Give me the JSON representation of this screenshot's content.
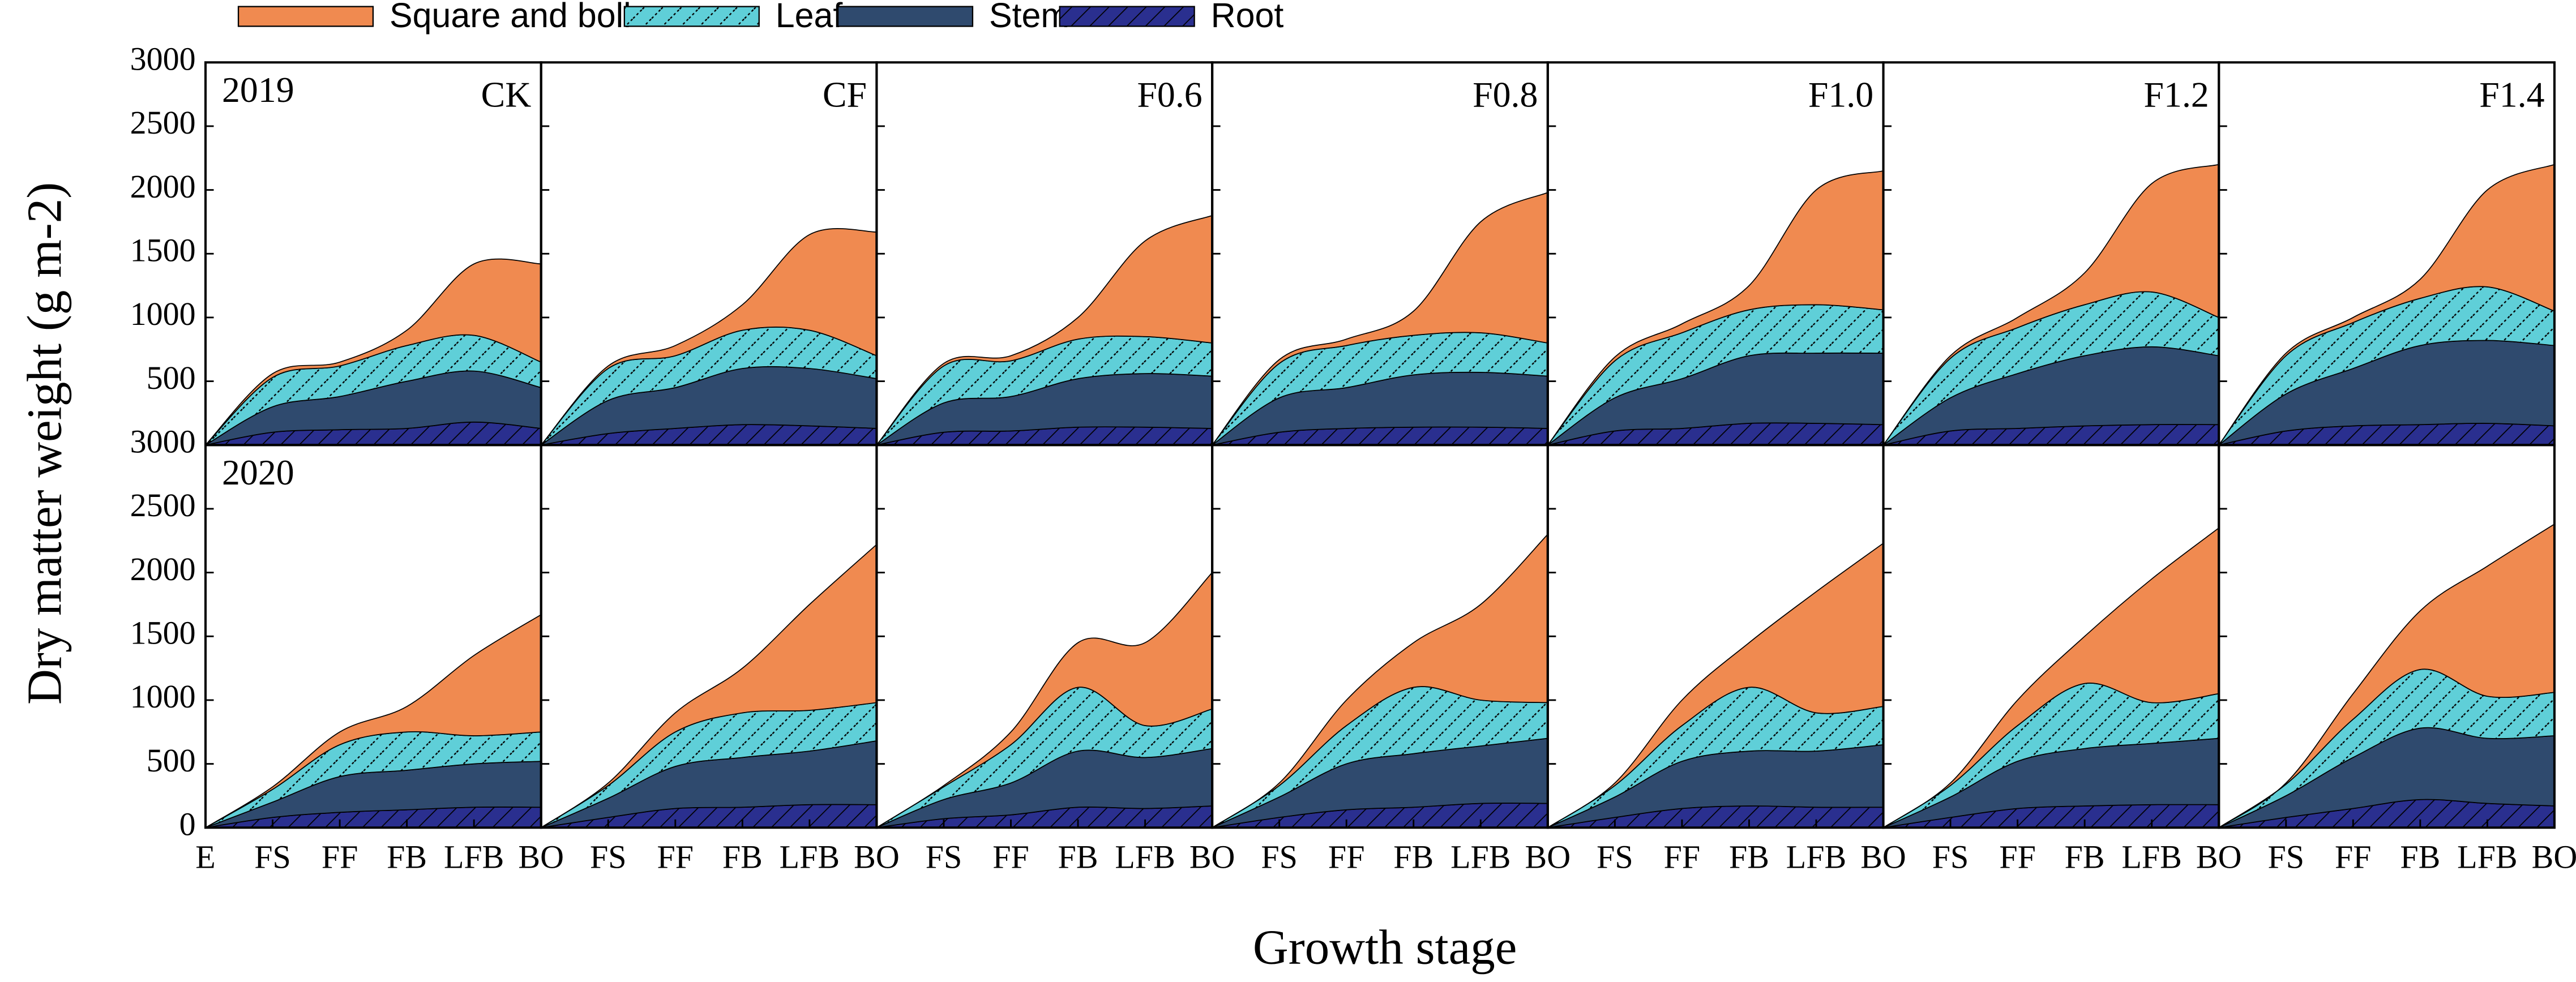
{
  "chart_data": {
    "type": "stacked_area",
    "ylabel": "Dry matter weight (g m-2)",
    "xlabel": "Growth stage",
    "categories": [
      "E",
      "FS",
      "FF",
      "FB",
      "LFB",
      "BO"
    ],
    "ylim": [
      0,
      3000
    ],
    "yticks": [
      0,
      500,
      1000,
      1500,
      2000,
      2500,
      3000
    ],
    "series": [
      {
        "name": "Square and boll",
        "color": "#f08a50"
      },
      {
        "name": "Leaf",
        "color": "#5fcfd8"
      },
      {
        "name": "Stem",
        "color": "#2f4a6e"
      },
      {
        "name": "Root",
        "color": "#2a2f8f"
      }
    ],
    "panels": [
      {
        "title": "CK",
        "annotation": "2019",
        "values": [
          [
            0,
            30,
            30,
            120,
            560,
            770
          ],
          [
            0,
            230,
            240,
            280,
            280,
            200
          ],
          [
            0,
            200,
            260,
            370,
            400,
            320
          ],
          [
            0,
            100,
            120,
            130,
            180,
            130
          ]
        ]
      },
      {
        "title": "CF",
        "values": [
          [
            0,
            20,
            80,
            200,
            750,
            970
          ],
          [
            0,
            250,
            250,
            300,
            300,
            180
          ],
          [
            0,
            260,
            320,
            440,
            450,
            390
          ],
          [
            0,
            90,
            130,
            160,
            150,
            130
          ]
        ]
      },
      {
        "title": "F0.6",
        "values": [
          [
            0,
            20,
            40,
            170,
            750,
            1000
          ],
          [
            0,
            290,
            280,
            310,
            290,
            260
          ],
          [
            0,
            230,
            270,
            380,
            420,
            410
          ],
          [
            0,
            100,
            110,
            140,
            140,
            130
          ]
        ]
      },
      {
        "title": "F0.8",
        "values": [
          [
            0,
            30,
            50,
            190,
            870,
            1180
          ],
          [
            0,
            270,
            330,
            310,
            310,
            260
          ],
          [
            0,
            270,
            320,
            410,
            430,
            410
          ],
          [
            0,
            100,
            130,
            140,
            140,
            130
          ]
        ]
      },
      {
        "title": "F1.0",
        "values": [
          [
            0,
            30,
            70,
            190,
            900,
            1090
          ],
          [
            0,
            290,
            360,
            360,
            380,
            340
          ],
          [
            0,
            260,
            390,
            530,
            550,
            560
          ],
          [
            0,
            110,
            130,
            170,
            170,
            160
          ]
        ]
      },
      {
        "title": "F1.2",
        "values": [
          [
            0,
            20,
            80,
            250,
            850,
            1200
          ],
          [
            0,
            310,
            360,
            400,
            430,
            300
          ],
          [
            0,
            260,
            430,
            550,
            610,
            540
          ],
          [
            0,
            110,
            130,
            150,
            160,
            160
          ]
        ]
      },
      {
        "title": "F1.4",
        "values": [
          [
            0,
            20,
            40,
            150,
            760,
            1150
          ],
          [
            0,
            300,
            360,
            370,
            420,
            270
          ],
          [
            0,
            290,
            450,
            620,
            650,
            630
          ],
          [
            0,
            110,
            150,
            160,
            170,
            150
          ]
        ]
      },
      {
        "annotation": "2020",
        "values": [
          [
            0,
            20,
            100,
            200,
            630,
            920
          ],
          [
            0,
            100,
            250,
            300,
            220,
            230
          ],
          [
            0,
            120,
            280,
            310,
            340,
            360
          ],
          [
            0,
            80,
            120,
            140,
            160,
            160
          ]
        ]
      },
      {
        "values": [
          [
            0,
            20,
            150,
            350,
            830,
            1240
          ],
          [
            0,
            100,
            270,
            350,
            320,
            300
          ],
          [
            0,
            150,
            330,
            390,
            420,
            500
          ],
          [
            0,
            80,
            150,
            160,
            180,
            180
          ]
        ]
      },
      {
        "values": [
          [
            0,
            10,
            100,
            350,
            650,
            1070
          ],
          [
            0,
            100,
            300,
            500,
            250,
            310
          ],
          [
            0,
            150,
            250,
            440,
            400,
            450
          ],
          [
            0,
            70,
            100,
            160,
            150,
            170
          ]
        ]
      },
      {
        "values": [
          [
            0,
            20,
            200,
            350,
            750,
            1320
          ],
          [
            0,
            90,
            300,
            520,
            360,
            280
          ],
          [
            0,
            160,
            360,
            420,
            450,
            510
          ],
          [
            0,
            80,
            140,
            160,
            190,
            190
          ]
        ]
      },
      {
        "values": [
          [
            0,
            20,
            200,
            350,
            950,
            1280
          ],
          [
            0,
            90,
            280,
            500,
            300,
            300
          ],
          [
            0,
            160,
            370,
            430,
            440,
            490
          ],
          [
            0,
            80,
            150,
            170,
            160,
            160
          ]
        ]
      },
      {
        "values": [
          [
            0,
            20,
            200,
            370,
            970,
            1300
          ],
          [
            0,
            90,
            280,
            510,
            320,
            350
          ],
          [
            0,
            160,
            370,
            450,
            480,
            520
          ],
          [
            0,
            80,
            150,
            170,
            180,
            180
          ]
        ]
      },
      {
        "values": [
          [
            0,
            10,
            200,
            460,
            1020,
            1320
          ],
          [
            0,
            90,
            300,
            460,
            330,
            340
          ],
          [
            0,
            170,
            400,
            560,
            510,
            550
          ],
          [
            0,
            80,
            150,
            220,
            190,
            170
          ]
        ]
      }
    ]
  }
}
